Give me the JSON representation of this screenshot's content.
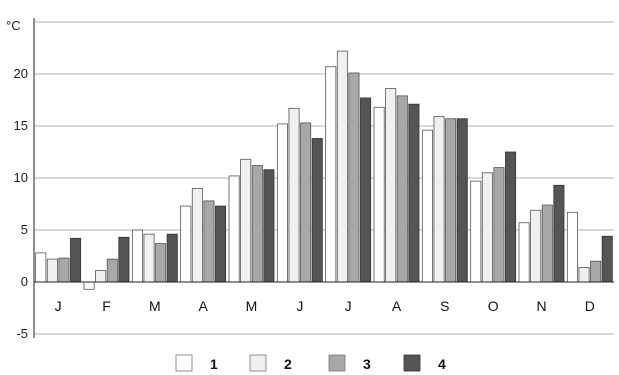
{
  "chart_data": {
    "type": "bar",
    "title": "",
    "y_unit": "°C",
    "ylim": [
      -5,
      25
    ],
    "yticks": [
      -5,
      0,
      5,
      10,
      15,
      20
    ],
    "grid": true,
    "legend_position": "bottom",
    "categories": [
      "J",
      "F",
      "M",
      "A",
      "M",
      "J",
      "J",
      "A",
      "S",
      "O",
      "N",
      "D"
    ],
    "series": [
      {
        "name": "1",
        "color": "#ffffff",
        "values": [
          2.8,
          -0.7,
          5.0,
          7.3,
          10.2,
          15.2,
          20.7,
          16.8,
          14.6,
          9.7,
          5.7,
          6.7
        ]
      },
      {
        "name": "2",
        "color": "#f0f0f0",
        "values": [
          2.2,
          1.1,
          4.6,
          9.0,
          11.8,
          16.7,
          22.2,
          18.6,
          15.9,
          10.5,
          6.9,
          1.4
        ]
      },
      {
        "name": "3",
        "color": "#a8a8a8",
        "values": [
          2.3,
          2.2,
          3.7,
          7.8,
          11.2,
          15.3,
          20.1,
          17.9,
          15.7,
          11.0,
          7.4,
          2.0
        ]
      },
      {
        "name": "4",
        "color": "#555555",
        "values": [
          4.2,
          4.3,
          4.6,
          7.3,
          10.8,
          13.8,
          17.7,
          17.1,
          15.7,
          12.5,
          9.3,
          4.4
        ]
      }
    ]
  }
}
